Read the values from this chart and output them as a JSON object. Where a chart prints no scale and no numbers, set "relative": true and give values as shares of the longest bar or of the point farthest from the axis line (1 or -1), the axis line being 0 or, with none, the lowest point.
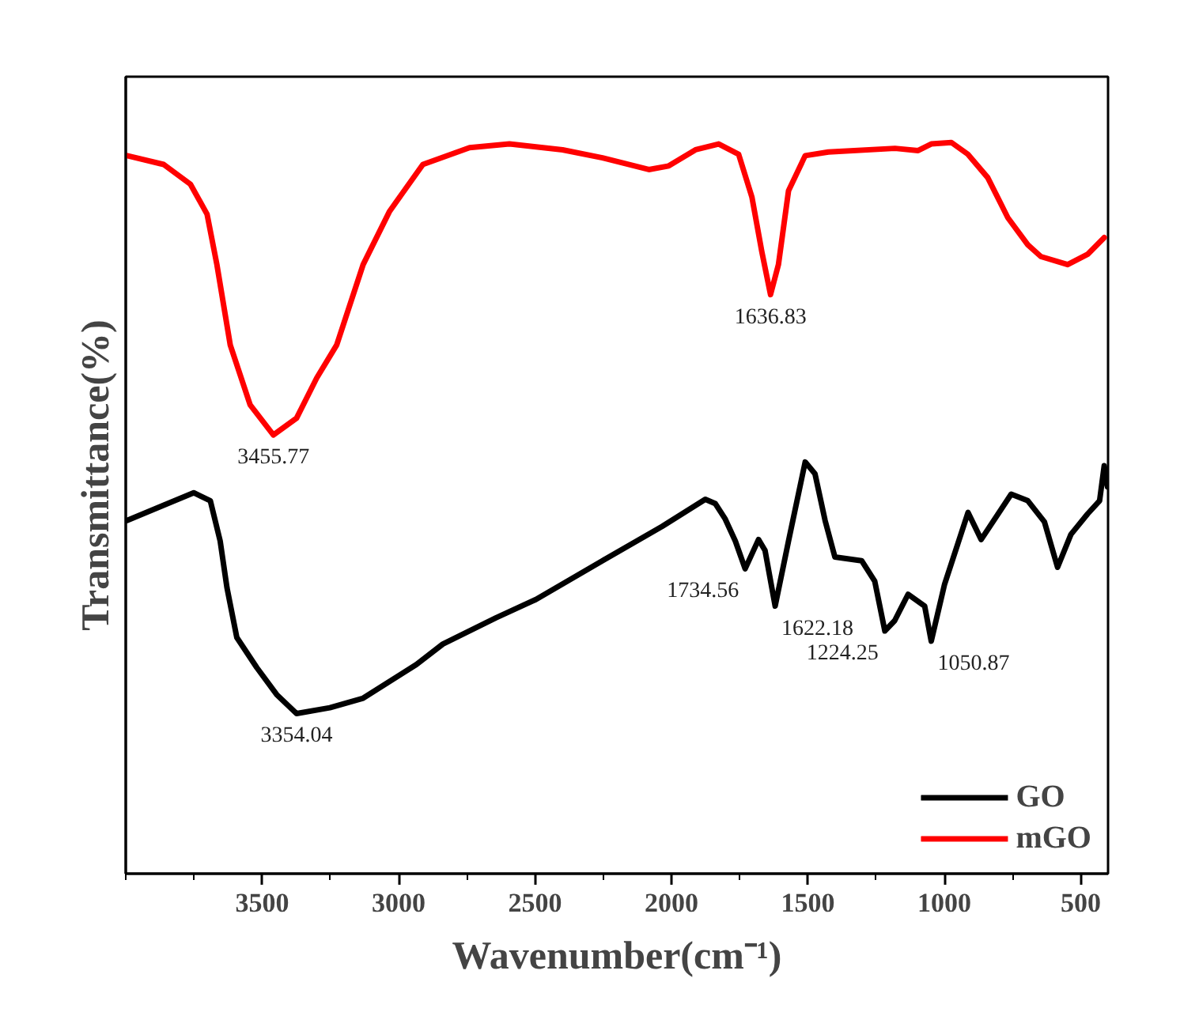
{
  "chart_data": {
    "type": "line",
    "relative": true,
    "xlabel": "Wavenumber(cm⁻¹)",
    "ylabel": "Transmittance(%)",
    "xlim": [
      4000,
      400
    ],
    "xticks": [
      3500,
      3000,
      2500,
      2000,
      1500,
      1000,
      500
    ],
    "grid": false,
    "legend": "bottom right",
    "marker": "none",
    "line_style": "solid",
    "series": [
      {
        "name": "GO",
        "color": "#000000",
        "x": [
          3995,
          3861,
          3751,
          3690,
          3654,
          3629,
          3593,
          3520,
          3447,
          3374,
          3252,
          3130,
          2935,
          2838,
          2643,
          2497,
          2253,
          2034,
          1876,
          1839,
          1803,
          1766,
          1730,
          1681,
          1657,
          1620,
          1571,
          1510,
          1474,
          1437,
          1401,
          1303,
          1255,
          1218,
          1182,
          1133,
          1072,
          1048,
          999,
          913,
          865,
          755,
          694,
          633,
          585,
          536,
          475,
          431,
          414,
          402
        ],
        "values": [
          0.483,
          0.504,
          0.521,
          0.51,
          0.455,
          0.391,
          0.323,
          0.282,
          0.245,
          0.219,
          0.227,
          0.24,
          0.286,
          0.314,
          0.35,
          0.375,
          0.428,
          0.475,
          0.512,
          0.506,
          0.485,
          0.455,
          0.417,
          0.457,
          0.442,
          0.366,
          0.455,
          0.563,
          0.547,
          0.483,
          0.433,
          0.428,
          0.4,
          0.332,
          0.346,
          0.382,
          0.366,
          0.318,
          0.396,
          0.494,
          0.457,
          0.519,
          0.51,
          0.481,
          0.419,
          0.464,
          0.492,
          0.51,
          0.558,
          0.529
        ]
      },
      {
        "name": "mGO",
        "color": "#ff0000",
        "x": [
          3995,
          3861,
          3763,
          3702,
          3666,
          3617,
          3544,
          3459,
          3374,
          3300,
          3227,
          3130,
          3033,
          2911,
          2740,
          2594,
          2399,
          2253,
          2083,
          2010,
          1912,
          1827,
          1754,
          1705,
          1669,
          1637,
          1608,
          1571,
          1510,
          1425,
          1181,
          1096,
          1048,
          974,
          914,
          841,
          767,
          694,
          646,
          548,
          475,
          414
        ],
        "values": [
          0.982,
          0.97,
          0.943,
          0.902,
          0.833,
          0.723,
          0.641,
          0.6,
          0.623,
          0.678,
          0.723,
          0.833,
          0.906,
          0.97,
          0.993,
          0.998,
          0.99,
          0.979,
          0.963,
          0.968,
          0.99,
          0.998,
          0.984,
          0.925,
          0.851,
          0.792,
          0.833,
          0.934,
          0.982,
          0.987,
          0.992,
          0.989,
          0.998,
          1.0,
          0.984,
          0.952,
          0.897,
          0.86,
          0.844,
          0.833,
          0.847,
          0.87
        ]
      }
    ],
    "annotations": [
      {
        "text": "3455.77",
        "x": 3459,
        "y": 0.6
      },
      {
        "text": "1636.83",
        "x": 1637,
        "y": 0.792
      },
      {
        "text": "3354.04",
        "x": 3374,
        "y": 0.219
      },
      {
        "text": "1734.56",
        "x": 1730,
        "y": 0.417
      },
      {
        "text": "1622.18",
        "x": 1620,
        "y": 0.366
      },
      {
        "text": "1224.25",
        "x": 1218,
        "y": 0.332
      },
      {
        "text": "1050.87",
        "x": 1048,
        "y": 0.318
      }
    ]
  }
}
